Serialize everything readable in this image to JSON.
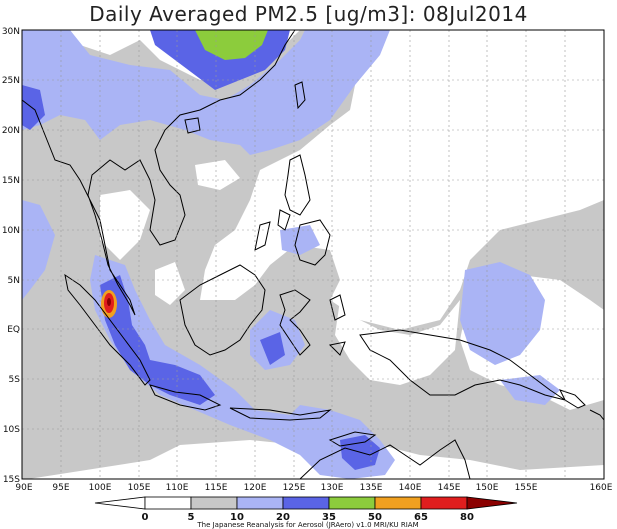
{
  "title": "Daily Averaged PM2.5 [ug/m3]: 08Jul2014",
  "map": {
    "lon_ticks": [
      "90E",
      "95E",
      "100E",
      "105E",
      "110E",
      "115E",
      "120E",
      "125E",
      "130E",
      "135E",
      "140E",
      "145E",
      "150E",
      "155E",
      "160E"
    ],
    "lat_ticks": [
      "30N",
      "25N",
      "20N",
      "15N",
      "10N",
      "5N",
      "EQ",
      "5S",
      "10S",
      "15S"
    ]
  },
  "legend": {
    "levels": [
      "0",
      "5",
      "10",
      "20",
      "35",
      "50",
      "65",
      "80"
    ],
    "colors": [
      "#ffffff",
      "#c8c8c8",
      "#aab4f5",
      "#5a64e6",
      "#8ccc3c",
      "#f0a020",
      "#e01e1e",
      "#8b0000"
    ]
  },
  "credit": "The Japanese Reanalysis for Aerosol (JRAero) v1.0 MRI/KU RIAM",
  "colors": {
    "grey": "#c8c8c8",
    "light_blue": "#aab4f5",
    "blue": "#5a64e6",
    "green": "#8ccc3c",
    "orange": "#f0a020",
    "red": "#e01e1e",
    "dark_red": "#8b0000"
  }
}
